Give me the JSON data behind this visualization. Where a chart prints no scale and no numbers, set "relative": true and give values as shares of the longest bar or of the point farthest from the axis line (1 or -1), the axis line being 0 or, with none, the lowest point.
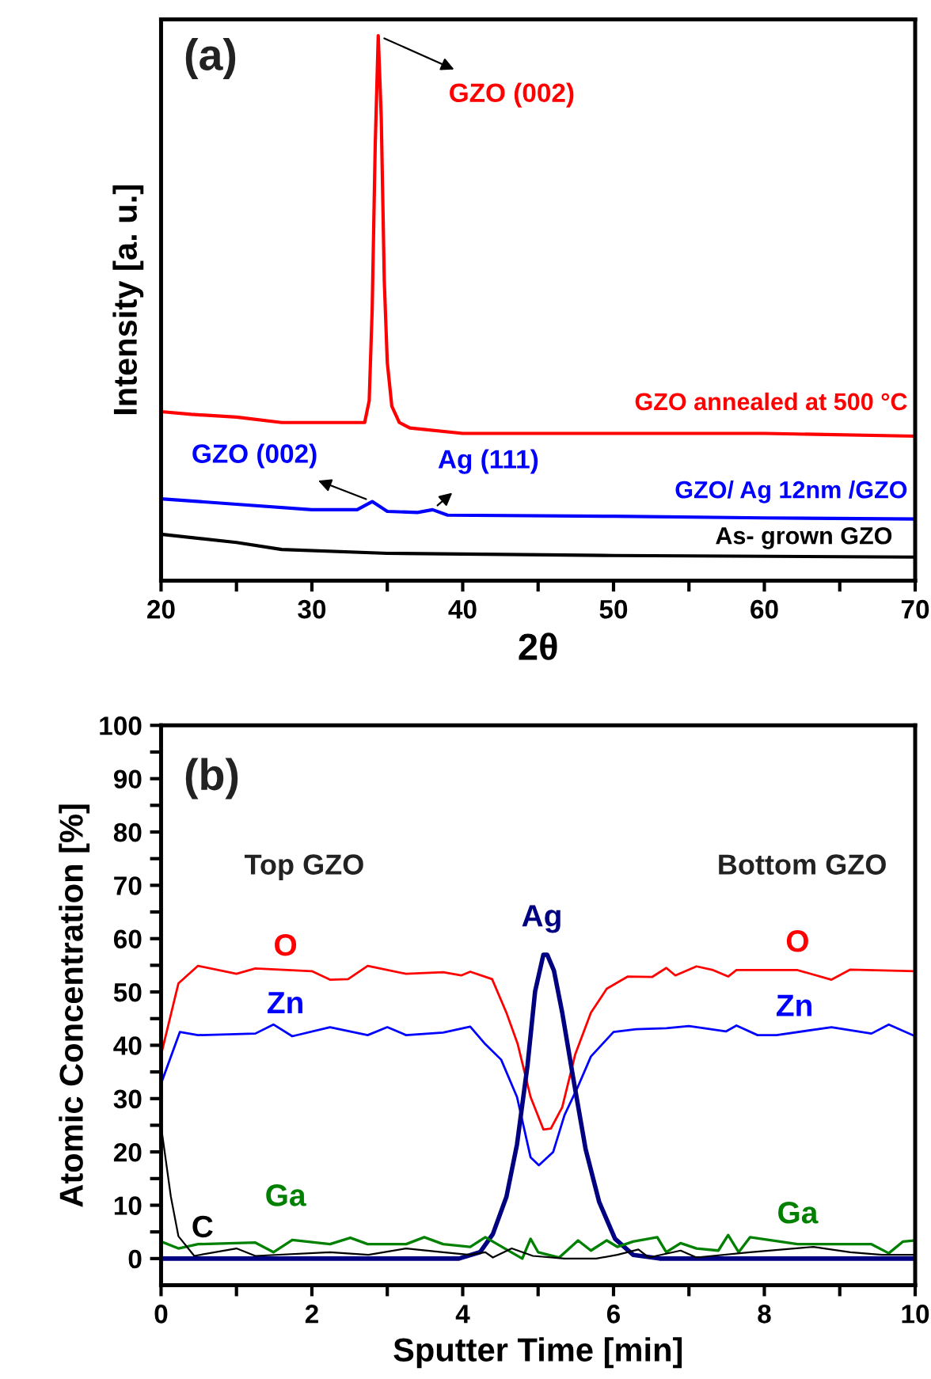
{
  "chart_data": [
    {
      "type": "line",
      "relative": true,
      "xlabel": "2θ",
      "ylabel": "Intensity [a. u.]",
      "xlim": [
        20,
        70
      ],
      "xticks": [
        20,
        {
          "value": 25,
          "label": null
        },
        30,
        {
          "value": 35,
          "label": null
        },
        40,
        {
          "value": 45,
          "label": null
        },
        50,
        {
          "value": 55,
          "label": null
        },
        60,
        {
          "value": 65,
          "label": null
        },
        70
      ],
      "grid": false,
      "legend": false,
      "annotations": [
        "(a)",
        {
          "text": "GZO (002)",
          "x": 34.4,
          "y": 1.0
        },
        {
          "text": "GZO (002)",
          "x": 34,
          "y": 0.145
        },
        {
          "text": "Ag (111)",
          "x": 38,
          "y": 0.13
        }
      ],
      "series": [
        {
          "name": "GZO annealed at 500 °C",
          "color": "#ff0000",
          "x": [
            20,
            22,
            25,
            28,
            30,
            33,
            33.5,
            33.8,
            34.0,
            34.2,
            34.4,
            34.6,
            34.8,
            35.0,
            35.3,
            35.8,
            36.5,
            40,
            50,
            60,
            70
          ],
          "values": [
            0.31,
            0.305,
            0.3,
            0.29,
            0.29,
            0.29,
            0.29,
            0.33,
            0.5,
            0.8,
            1.0,
            0.85,
            0.55,
            0.4,
            0.32,
            0.29,
            0.28,
            0.27,
            0.27,
            0.27,
            0.265
          ]
        },
        {
          "name": "GZO/ Ag 12nm /GZO",
          "color": "#0000ff",
          "x": [
            20,
            25,
            30,
            33,
            34,
            35,
            37,
            38,
            39,
            50,
            60,
            70
          ],
          "values": [
            0.15,
            0.14,
            0.13,
            0.13,
            0.145,
            0.127,
            0.125,
            0.13,
            0.12,
            0.118,
            0.115,
            0.113
          ]
        },
        {
          "name": "As- grown GZO",
          "color": "#000000",
          "x": [
            20,
            25,
            28,
            35,
            50,
            70
          ],
          "values": [
            0.085,
            0.07,
            0.057,
            0.05,
            0.046,
            0.043
          ]
        }
      ]
    },
    {
      "type": "line",
      "xlabel": "Sputter Time [min]",
      "ylabel": "Atomic Concentration [%]",
      "xlim": [
        0,
        10
      ],
      "ylim": [
        -5,
        100
      ],
      "xticks": [
        0,
        {
          "value": 1,
          "label": null
        },
        2,
        {
          "value": 3,
          "label": null
        },
        4,
        {
          "value": 5,
          "label": null
        },
        6,
        {
          "value": 7,
          "label": null
        },
        8,
        {
          "value": 9,
          "label": null
        },
        10
      ],
      "yticks": [
        0,
        {
          "value": 5,
          "label": null
        },
        10,
        {
          "value": 15,
          "label": null
        },
        20,
        {
          "value": 25,
          "label": null
        },
        30,
        {
          "value": 35,
          "label": null
        },
        40,
        {
          "value": 45,
          "label": null
        },
        50,
        {
          "value": 55,
          "label": null
        },
        60,
        {
          "value": 65,
          "label": null
        },
        70,
        {
          "value": 75,
          "label": null
        },
        80,
        {
          "value": 85,
          "label": null
        },
        90,
        {
          "value": 95,
          "label": null
        },
        100
      ],
      "grid": false,
      "legend": false,
      "annotations": [
        "(b)",
        "Top GZO",
        "Bottom GZO",
        {
          "text": "O",
          "x": 8.44,
          "y": 54.1
        },
        {
          "text": "Zn",
          "x": 8.4,
          "y": 42
        },
        {
          "text": "Ga",
          "x": 8.44,
          "y": 2.7
        }
      ],
      "series": [
        {
          "name": "O",
          "color": "#ff0000",
          "x": [
            0,
            0.23,
            0.49,
            1.0,
            1.25,
            2.0,
            2.24,
            2.48,
            2.74,
            3.25,
            3.74,
            3.98,
            4.1,
            4.39,
            4.58,
            4.73,
            4.9,
            5.07,
            5.17,
            5.32,
            5.49,
            5.7,
            5.91,
            6.19,
            6.51,
            6.7,
            6.82,
            7.1,
            7.32,
            7.52,
            7.63,
            8.44,
            8.89,
            9.14,
            10
          ],
          "values": [
            38.2,
            51.6,
            54.9,
            53.4,
            54.4,
            53.9,
            52.3,
            52.4,
            54.9,
            53.4,
            53.7,
            53.1,
            53.8,
            52.4,
            46.1,
            40.2,
            30.3,
            24.2,
            24.4,
            28.4,
            38.2,
            46.1,
            50.6,
            52.9,
            52.8,
            54.5,
            53.1,
            54.8,
            54.1,
            52.9,
            54.1,
            54.1,
            52.3,
            54.2,
            53.9
          ]
        },
        {
          "name": "Zn",
          "color": "#0000ff",
          "x": [
            0,
            0.25,
            0.49,
            1.25,
            1.49,
            1.74,
            2.24,
            2.74,
            3.0,
            3.25,
            3.74,
            4.1,
            4.3,
            4.51,
            4.72,
            4.9,
            5.01,
            5.2,
            5.35,
            5.53,
            5.7,
            6.0,
            6.3,
            6.7,
            7.0,
            7.49,
            7.63,
            7.91,
            8.16,
            8.89,
            9.42,
            9.65,
            10
          ],
          "values": [
            32.8,
            42.5,
            41.9,
            42.2,
            43.9,
            41.7,
            43.4,
            41.9,
            43.4,
            41.9,
            42.4,
            43.5,
            40.2,
            37.3,
            30.3,
            19.0,
            17.5,
            20.0,
            26.9,
            32.3,
            37.9,
            42.5,
            43.0,
            43.2,
            43.6,
            42.6,
            43.7,
            41.9,
            41.9,
            43.4,
            42.2,
            43.9,
            41.7
          ]
        },
        {
          "name": "Ag",
          "color": "#000080",
          "x": [
            0,
            3.95,
            4.23,
            4.4,
            4.58,
            4.72,
            4.86,
            4.96,
            5.07,
            5.12,
            5.21,
            5.32,
            5.46,
            5.63,
            5.81,
            6.02,
            6.26,
            6.61,
            10
          ],
          "values": [
            0,
            0,
            1.2,
            4.6,
            11.6,
            21.4,
            36.3,
            50.1,
            57.0,
            57.0,
            54.0,
            46.1,
            34.3,
            20.5,
            10.6,
            3.7,
            0.7,
            0,
            0
          ]
        },
        {
          "name": "Ga",
          "color": "#008000",
          "x": [
            0,
            0.23,
            0.49,
            1.25,
            1.49,
            1.74,
            2.24,
            2.51,
            2.74,
            3.25,
            3.49,
            3.74,
            4.1,
            4.3,
            4.58,
            4.79,
            4.9,
            5.0,
            5.28,
            5.53,
            5.7,
            5.91,
            6.05,
            6.26,
            6.58,
            6.7,
            6.89,
            7.1,
            7.39,
            7.52,
            7.66,
            7.81,
            8.44,
            8.86,
            9.42,
            9.65,
            9.84,
            10
          ],
          "values": [
            3.2,
            1.9,
            2.7,
            3.0,
            1.2,
            3.5,
            2.7,
            3.9,
            2.7,
            2.7,
            4.0,
            2.7,
            2.2,
            4.0,
            1.7,
            0,
            3.7,
            1.2,
            0.2,
            3.4,
            1.5,
            3.4,
            2.2,
            3.2,
            4.0,
            1.2,
            2.9,
            1.9,
            1.5,
            4.4,
            1.2,
            4.0,
            2.7,
            2.7,
            2.7,
            1.0,
            3.2,
            3.4
          ]
        },
        {
          "name": "C",
          "color": "#000000",
          "x": [
            0,
            0.13,
            0.23,
            0.44,
            1.0,
            1.25,
            2.24,
            2.75,
            3.25,
            3.74,
            4.09,
            4.3,
            4.4,
            4.65,
            4.93,
            5.35,
            5.77,
            6.05,
            6.33,
            6.47,
            6.89,
            7.1,
            7.81,
            8.65,
            9.14,
            9.56,
            10
          ],
          "values": [
            24.9,
            11.6,
            4.2,
            0.5,
            1.9,
            0.5,
            1.2,
            0.7,
            1.9,
            1.2,
            0.7,
            1.2,
            0.2,
            1.9,
            0.5,
            0,
            0,
            0.7,
            1.7,
            0.2,
            1.5,
            0.2,
            1.2,
            2.2,
            1.2,
            0.7,
            0.7
          ]
        }
      ]
    }
  ]
}
